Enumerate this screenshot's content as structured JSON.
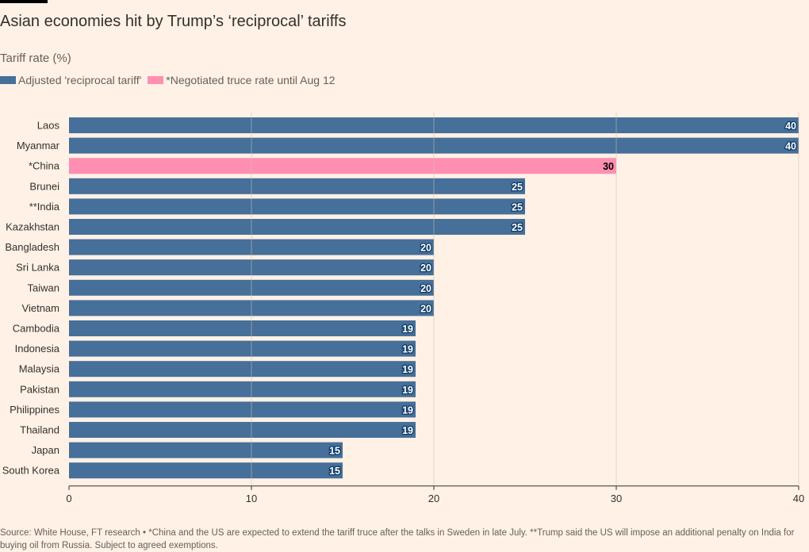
{
  "header": {
    "title": "Asian economies hit by Trump’s ‘reciprocal’ tariffs",
    "subtitle": "Tariff rate (%)"
  },
  "legend": {
    "items": [
      {
        "label": "Adjusted 'reciprocal tariff'",
        "color": "#0f5499"
      },
      {
        "label": "*Negotiated truce rate until Aug 12",
        "color": "#ff7faa"
      }
    ]
  },
  "footer": {
    "source": "Source: White House, FT research • *China and the US are expected to extend the tariff truce after the talks in Sweden in late July. **Trump said the US will impose an additional penalty on India for buying oil from Russia. Subject to agreed exemptions."
  },
  "colors": {
    "background": "#fff1e5",
    "primary_bar": "#466f99",
    "highlight_bar": "#ff8fb2",
    "gridline": "#ccc1b7",
    "axis": "#33302e"
  },
  "chart_data": {
    "type": "bar",
    "orientation": "horizontal",
    "title": "Asian economies hit by Trump’s ‘reciprocal’ tariffs",
    "xlabel": "",
    "ylabel": "Tariff rate (%)",
    "xlim": [
      0,
      40
    ],
    "xticks": [
      0,
      10,
      20,
      30,
      40
    ],
    "grid": true,
    "legend_position": "top-left",
    "categories": [
      "Laos",
      "Myanmar",
      "*China",
      "Brunei",
      "**India",
      "Kazakhstan",
      "Bangladesh",
      "Sri Lanka",
      "Taiwan",
      "Vietnam",
      "Cambodia",
      "Indonesia",
      "Malaysia",
      "Pakistan",
      "Philippines",
      "Thailand",
      "Japan",
      "South Korea"
    ],
    "values": [
      40,
      40,
      30,
      25,
      25,
      25,
      20,
      20,
      20,
      20,
      19,
      19,
      19,
      19,
      19,
      19,
      15,
      15
    ],
    "series_for_category": [
      "Adjusted 'reciprocal tariff'",
      "Adjusted 'reciprocal tariff'",
      "*Negotiated truce rate until Aug 12",
      "Adjusted 'reciprocal tariff'",
      "Adjusted 'reciprocal tariff'",
      "Adjusted 'reciprocal tariff'",
      "Adjusted 'reciprocal tariff'",
      "Adjusted 'reciprocal tariff'",
      "Adjusted 'reciprocal tariff'",
      "Adjusted 'reciprocal tariff'",
      "Adjusted 'reciprocal tariff'",
      "Adjusted 'reciprocal tariff'",
      "Adjusted 'reciprocal tariff'",
      "Adjusted 'reciprocal tariff'",
      "Adjusted 'reciprocal tariff'",
      "Adjusted 'reciprocal tariff'",
      "Adjusted 'reciprocal tariff'",
      "Adjusted 'reciprocal tariff'"
    ],
    "data_labels": [
      "40",
      "40",
      "30",
      "25",
      "25",
      "25",
      "20",
      "20",
      "20",
      "20",
      "19",
      "19",
      "19",
      "19",
      "19",
      "19",
      "15",
      "15"
    ]
  }
}
